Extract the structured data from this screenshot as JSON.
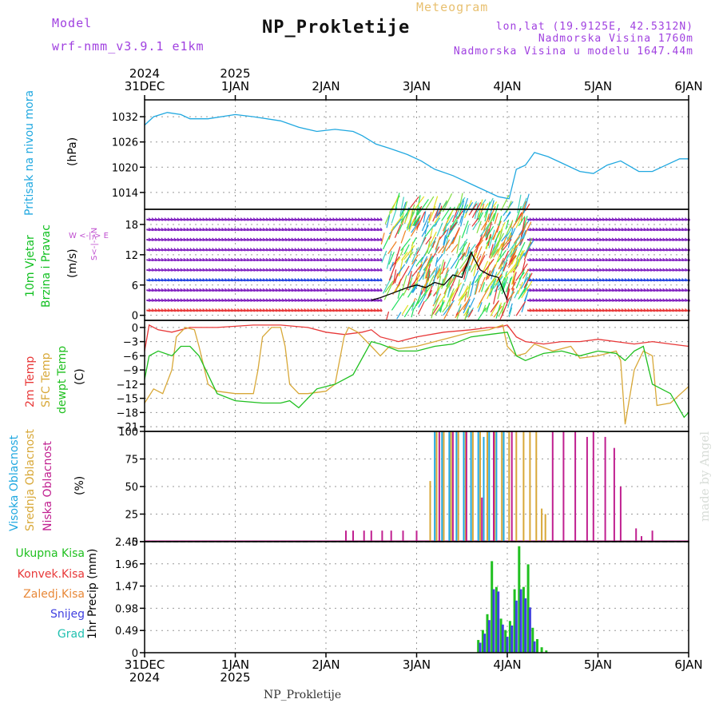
{
  "header": {
    "model_label": "Model",
    "model_name": "wrf-nmm_v3.9.1 e1km",
    "subtitle": "Meteogram",
    "title": "NP_Prokletije",
    "coords": "lon,lat (19.9125E, 42.5312N)",
    "altitude": "Nadmorska Visina 1760m",
    "model_altitude": "Nadmorska Visina u modelu 1647.44m",
    "credit": "made by Angel",
    "footer": "NP_Prokletije"
  },
  "time_axis": {
    "range_days": [
      0,
      6
    ],
    "top_years": [
      {
        "text": "2024",
        "day": 0
      },
      {
        "text": "2025",
        "day": 1
      }
    ],
    "ticks": [
      {
        "label": "31DEC",
        "day": 0
      },
      {
        "label": "1JAN",
        "day": 1
      },
      {
        "label": "2JAN",
        "day": 2
      },
      {
        "label": "3JAN",
        "day": 3
      },
      {
        "label": "4JAN",
        "day": 4
      },
      {
        "label": "5JAN",
        "day": 5
      },
      {
        "label": "6JAN",
        "day": 6
      }
    ],
    "bottom_years": [
      {
        "text": "2024",
        "day": 0
      },
      {
        "text": "2025",
        "day": 1
      }
    ]
  },
  "panel_labels": {
    "pressure": {
      "name": "Pritisak na nivou mora",
      "unit": "(hPa)",
      "color": "#20a8e0"
    },
    "wind": {
      "name1": "10m Vjetar",
      "name2": "Brzina i Pravac",
      "unit": "(m/s)",
      "color": "#10c020",
      "compass_ns": "S<-|->N",
      "compass_we": "W <-|-> E",
      "compass_color": "#c050d0"
    },
    "temperature": {
      "series": [
        {
          "name": "2m Temp",
          "color": "#e83838"
        },
        {
          "name": "SFC Temp",
          "color": "#d8a838"
        },
        {
          "name": "dewpt Temp",
          "color": "#20c020"
        }
      ],
      "unit": "(C)"
    },
    "clouds": {
      "series": [
        {
          "name": "Visoka Oblacnost",
          "color": "#20a8e0"
        },
        {
          "name": "Srednja Oblacnost",
          "color": "#d8a838"
        },
        {
          "name": "Niska Oblacnost",
          "color": "#c02090"
        }
      ],
      "unit": "(%)"
    },
    "precip": {
      "axis_name": "1hr Precip (mm)",
      "legend": [
        {
          "name": "Ukupna Kisa",
          "color": "#20c020"
        },
        {
          "name": "Konvek.Kisa",
          "color": "#e83838"
        },
        {
          "name": "Zaledj.Kisa",
          "color": "#e88838"
        },
        {
          "name": "Snijeg",
          "color": "#4040e0"
        },
        {
          "name": "Grad",
          "color": "#20c0b0"
        }
      ]
    }
  },
  "chart_data": [
    {
      "type": "line",
      "panel": "pressure",
      "ylim": [
        1010,
        1036
      ],
      "yticks": [
        1014,
        1020,
        1026,
        1032
      ],
      "grid": true,
      "series": [
        {
          "color": "#20a8e0",
          "x": [
            0,
            0.1,
            0.25,
            0.4,
            0.5,
            0.7,
            1.0,
            1.2,
            1.5,
            1.7,
            1.9,
            2.1,
            2.3,
            2.4,
            2.55,
            2.7,
            2.9,
            3.05,
            3.2,
            3.4,
            3.6,
            3.8,
            3.9,
            4.02,
            4.1,
            4.2,
            4.3,
            4.45,
            4.6,
            4.8,
            4.95,
            5.1,
            5.25,
            5.45,
            5.6,
            5.75,
            5.9,
            6.0
          ],
          "y": [
            1030,
            1032,
            1033,
            1032.5,
            1031.5,
            1031.5,
            1032.5,
            1032,
            1031,
            1029.5,
            1028.5,
            1029,
            1028.5,
            1027.5,
            1025.5,
            1024.5,
            1023,
            1021.5,
            1019.5,
            1018,
            1016,
            1014,
            1013,
            1012.5,
            1019.5,
            1020.5,
            1023.5,
            1022.5,
            1021,
            1019,
            1018.5,
            1020.5,
            1021.5,
            1019,
            1019,
            1020.5,
            1022,
            1022
          ]
        }
      ]
    },
    {
      "type": "line",
      "panel": "wind",
      "ylim": [
        -1,
        21
      ],
      "yticks": [
        0,
        6,
        12,
        18
      ],
      "grid": true,
      "series": [
        {
          "name": "wind speed",
          "color": "#000000",
          "x": [
            2.5,
            2.6,
            2.75,
            2.9,
            3.0,
            3.1,
            3.2,
            3.3,
            3.4,
            3.5,
            3.6,
            3.7,
            3.8,
            3.9,
            4.0
          ],
          "y": [
            3,
            3.5,
            4.5,
            5.5,
            6,
            5.5,
            6.5,
            6,
            8,
            7.5,
            12.5,
            9,
            8,
            7.5,
            3
          ]
        }
      ],
      "barb_rows": [
        1,
        3,
        5,
        7,
        9,
        11,
        13,
        15,
        17,
        19
      ],
      "gust_band_days": [
        2.6,
        4.2
      ]
    },
    {
      "type": "line",
      "panel": "temperature",
      "ylim": [
        -22,
        1.5
      ],
      "yticks": [
        0,
        -3,
        -6,
        -9,
        -12,
        -15,
        -18,
        -21
      ],
      "grid": true,
      "series": [
        {
          "name": "2m Temp",
          "color": "#e83838",
          "x": [
            0,
            0.05,
            0.15,
            0.3,
            0.5,
            0.8,
            1.2,
            1.5,
            1.8,
            2.0,
            2.2,
            2.4,
            2.5,
            2.6,
            2.8,
            3.0,
            3.3,
            3.6,
            3.8,
            3.9,
            4.0,
            4.1,
            4.2,
            4.4,
            4.6,
            4.8,
            5.0,
            5.2,
            5.4,
            5.6,
            5.8,
            6.0
          ],
          "y": [
            -5,
            0.5,
            -0.5,
            -1,
            0,
            0,
            0.5,
            0.5,
            0,
            -1,
            -1.5,
            -1,
            -0.5,
            -2,
            -3,
            -2,
            -1,
            -0.5,
            0,
            0,
            0.5,
            -2,
            -3,
            -3.5,
            -3,
            -3,
            -2.5,
            -3,
            -3.5,
            -3,
            -3.5,
            -4
          ]
        },
        {
          "name": "SFC Temp",
          "color": "#d8a838",
          "x": [
            0,
            0.1,
            0.2,
            0.3,
            0.35,
            0.45,
            0.55,
            0.6,
            0.7,
            0.8,
            1.0,
            1.2,
            1.25,
            1.3,
            1.4,
            1.5,
            1.55,
            1.6,
            1.7,
            1.8,
            2.0,
            2.1,
            2.2,
            2.25,
            2.35,
            2.5,
            2.6,
            2.7,
            2.8,
            3.0,
            3.2,
            3.4,
            3.6,
            3.8,
            3.95,
            4.0,
            4.1,
            4.2,
            4.3,
            4.5,
            4.7,
            4.8,
            5.0,
            5.2,
            5.25,
            5.3,
            5.4,
            5.5,
            5.6,
            5.65,
            5.8,
            6.0
          ],
          "y": [
            -16,
            -13,
            -14,
            -9,
            -2,
            0,
            -0.5,
            -4,
            -12,
            -13.5,
            -14,
            -14,
            -9,
            -2,
            0,
            0,
            -4,
            -12,
            -14,
            -14,
            -13.5,
            -12,
            -2,
            0,
            -1,
            -4,
            -6,
            -4,
            -4.5,
            -4,
            -3,
            -2,
            -1,
            -0.5,
            0.5,
            -4,
            -6,
            -5.5,
            -3.5,
            -5,
            -4,
            -6.5,
            -6,
            -5,
            -7,
            -20.5,
            -9,
            -5,
            -6,
            -16.5,
            -16,
            -12.5
          ]
        },
        {
          "name": "dewpt Temp",
          "color": "#20c020",
          "x": [
            0,
            0.05,
            0.15,
            0.3,
            0.4,
            0.5,
            0.6,
            0.8,
            1.0,
            1.3,
            1.5,
            1.6,
            1.7,
            1.9,
            2.1,
            2.3,
            2.5,
            2.6,
            2.8,
            3.0,
            3.2,
            3.4,
            3.6,
            3.8,
            4.0,
            4.1,
            4.2,
            4.4,
            4.6,
            4.8,
            5.0,
            5.2,
            5.3,
            5.4,
            5.5,
            5.6,
            5.8,
            5.95,
            6.0
          ],
          "y": [
            -11,
            -6,
            -5,
            -6,
            -4,
            -4,
            -6,
            -14,
            -15.5,
            -16,
            -16,
            -15.5,
            -17,
            -13,
            -12,
            -10,
            -3,
            -3.5,
            -5,
            -5,
            -4,
            -3.5,
            -2,
            -1.5,
            -1,
            -6,
            -7,
            -5.5,
            -5,
            -6,
            -5,
            -5.5,
            -7,
            -5,
            -4,
            -12,
            -14,
            -19,
            -18
          ]
        }
      ]
    },
    {
      "type": "bar",
      "panel": "clouds",
      "ylim": [
        0,
        100
      ],
      "yticks": [
        0,
        25,
        50,
        75,
        100
      ],
      "grid": true,
      "series": [
        {
          "name": "Visoka Oblacnost",
          "color": "#20a8e0",
          "x": [
            3.2,
            3.28,
            3.36,
            3.44,
            3.52,
            3.6,
            3.68,
            3.74,
            3.8,
            3.88,
            3.96
          ],
          "values": [
            100,
            100,
            100,
            100,
            100,
            100,
            100,
            95,
            100,
            100,
            100
          ]
        },
        {
          "name": "Srednja Oblacnost",
          "color": "#d8a838",
          "x": [
            3.15,
            3.22,
            3.3,
            3.38,
            3.46,
            3.54,
            3.62,
            3.7,
            3.78,
            3.86,
            3.94,
            4.02,
            4.1,
            4.18,
            4.25,
            4.32,
            4.38,
            4.42
          ],
          "values": [
            55,
            100,
            100,
            100,
            100,
            100,
            100,
            100,
            100,
            100,
            100,
            100,
            100,
            100,
            100,
            100,
            30,
            25
          ]
        },
        {
          "name": "Niska Oblacnost",
          "color": "#c02090",
          "x": [
            2.22,
            2.3,
            2.42,
            2.5,
            2.62,
            2.72,
            2.85,
            3.0,
            3.25,
            3.4,
            3.55,
            3.72,
            3.85,
            4.05,
            4.5,
            4.62,
            4.75,
            4.88,
            4.95,
            5.08,
            5.18,
            5.25,
            5.42,
            5.48,
            5.6
          ],
          "values": [
            10,
            10,
            10,
            10,
            10,
            10,
            10,
            10,
            100,
            100,
            100,
            40,
            100,
            100,
            100,
            100,
            100,
            95,
            100,
            95,
            85,
            50,
            12,
            5,
            10
          ]
        }
      ]
    },
    {
      "type": "bar",
      "panel": "precip",
      "ylim": [
        0,
        2.45
      ],
      "yticks": [
        0,
        0.49,
        0.98,
        1.47,
        1.96,
        2.45
      ],
      "grid": true,
      "series": [
        {
          "name": "Ukupna Kisa",
          "color": "#20c020",
          "x": [
            3.68,
            3.73,
            3.78,
            3.83,
            3.88,
            3.93,
            3.98,
            4.03,
            4.08,
            4.13,
            4.18,
            4.23,
            4.28,
            4.33,
            4.38,
            4.43
          ],
          "values": [
            0.28,
            0.5,
            0.85,
            2.02,
            1.45,
            0.75,
            0.5,
            0.7,
            1.4,
            2.35,
            1.45,
            1.95,
            0.55,
            0.3,
            0.12,
            0.05
          ]
        },
        {
          "name": "Snijeg",
          "color": "#4040e0",
          "x": [
            3.7,
            3.75,
            3.8,
            3.85,
            3.9,
            3.95,
            4.0,
            4.05,
            4.1,
            4.15,
            4.2,
            4.25,
            4.3
          ],
          "values": [
            0.22,
            0.42,
            0.72,
            1.4,
            1.35,
            0.62,
            0.35,
            0.6,
            1.15,
            1.4,
            1.2,
            1.0,
            0.25
          ]
        }
      ]
    }
  ]
}
